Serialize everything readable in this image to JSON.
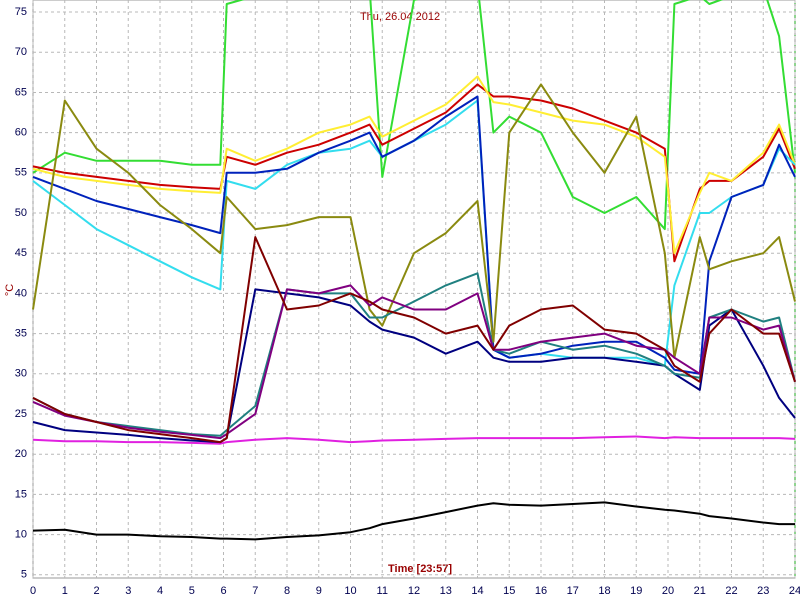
{
  "chart_data": {
    "type": "line",
    "title": "Thu, 26.04.2012",
    "x_label": "Time [23:57]",
    "y_label": "°C",
    "x": [
      0,
      1,
      2,
      3,
      4,
      5,
      5.9,
      6.1,
      7,
      8,
      9,
      10,
      10.6,
      11,
      12,
      13,
      14,
      14.5,
      15,
      16,
      17,
      18,
      19,
      19.9,
      20.2,
      21,
      21.3,
      22,
      23,
      23.5,
      24
    ],
    "xlim": [
      0,
      24
    ],
    "xticks": [
      0,
      1,
      2,
      3,
      4,
      5,
      6,
      7,
      8,
      9,
      10,
      11,
      12,
      13,
      14,
      15,
      16,
      17,
      18,
      19,
      20,
      21,
      22,
      23,
      24
    ],
    "ylim": [
      4.6,
      76.5
    ],
    "yticks": [
      5,
      10,
      15,
      20,
      25,
      30,
      35,
      40,
      45,
      50,
      55,
      60,
      65,
      70,
      75
    ],
    "grid": true,
    "series": [
      {
        "color": "#000000",
        "values": [
          10.5,
          10.6,
          10,
          10,
          9.8,
          9.7,
          9.5,
          9.5,
          9.4,
          9.7,
          9.9,
          10.3,
          10.8,
          11.3,
          12,
          12.8,
          13.6,
          13.9,
          13.7,
          13.6,
          13.8,
          14,
          13.5,
          13.1,
          13,
          12.6,
          12.3,
          12,
          11.5,
          11.3,
          11.3
        ]
      },
      {
        "color": "#e020e0",
        "values": [
          21.8,
          21.6,
          21.6,
          21.5,
          21.5,
          21.4,
          21.3,
          21.5,
          21.8,
          22,
          21.8,
          21.5,
          21.6,
          21.7,
          21.8,
          21.9,
          22,
          22,
          22,
          22,
          22,
          22.1,
          22.2,
          22,
          22.1,
          22,
          22,
          22,
          22,
          22,
          21.9
        ]
      },
      {
        "color": "#33dd33",
        "values": [
          55,
          57.5,
          56.5,
          56.5,
          56.5,
          56,
          56,
          76,
          77,
          77,
          77,
          78,
          78,
          54.5,
          76.5,
          77.5,
          78.5,
          60,
          62,
          60,
          52,
          50,
          52,
          48,
          76,
          77,
          76,
          77,
          78,
          72,
          55
        ]
      },
      {
        "color": "#cc0000",
        "values": [
          55.8,
          55,
          54.5,
          54,
          53.5,
          53.2,
          53,
          57,
          56,
          57.5,
          58.5,
          60,
          61,
          58.5,
          60.5,
          62.5,
          66,
          64.5,
          64.5,
          64,
          63,
          61.5,
          60,
          58,
          44,
          53,
          54,
          54,
          57,
          60.5,
          55.5
        ]
      },
      {
        "color": "#ffee33",
        "values": [
          55.5,
          54.5,
          54,
          53.5,
          53,
          52.7,
          52.5,
          58,
          56.5,
          58,
          60,
          61,
          62,
          59.5,
          61.5,
          63.5,
          67,
          63.8,
          63.5,
          62.5,
          61.5,
          61,
          59.5,
          57,
          45,
          52.5,
          55,
          54,
          57.5,
          61,
          56
        ]
      },
      {
        "color": "#33ddee",
        "values": [
          54,
          51,
          48,
          46,
          44,
          42,
          40.5,
          54,
          53,
          56,
          57.5,
          58,
          59,
          57,
          59,
          61,
          64,
          33,
          32,
          32.5,
          32,
          32,
          32,
          31,
          41,
          50,
          50,
          52,
          53.5,
          58,
          56
        ]
      },
      {
        "color": "#0022bb",
        "values": [
          54.5,
          53,
          51.5,
          50.5,
          49.5,
          48.5,
          47.5,
          55,
          55,
          55.5,
          57.5,
          59,
          60,
          57,
          59,
          62,
          64.5,
          33,
          32,
          32.5,
          33.5,
          34,
          34,
          32,
          30.5,
          30,
          44,
          52,
          53.5,
          58.5,
          54.5
        ]
      },
      {
        "color": "#8a8a10",
        "values": [
          38,
          64,
          58,
          55,
          51,
          48,
          45,
          52,
          48,
          48.5,
          49.5,
          49.5,
          38,
          36,
          45,
          47.5,
          51.5,
          34,
          60,
          66,
          60,
          55,
          62,
          45,
          32,
          47,
          43,
          44,
          45,
          47,
          39
        ]
      },
      {
        "color": "#000080",
        "values": [
          24,
          23,
          22.7,
          22.4,
          22,
          21.7,
          21.5,
          22,
          40.5,
          40,
          39.5,
          38.5,
          36.5,
          35.5,
          34.5,
          32.5,
          34,
          32,
          31.5,
          31.5,
          32,
          32,
          31.5,
          31,
          30,
          28,
          36,
          38,
          31,
          27,
          24.5
        ]
      },
      {
        "color": "#208080",
        "values": [
          27,
          25,
          24,
          23.5,
          23,
          22.5,
          22.3,
          23,
          26,
          40.5,
          40,
          40,
          37,
          37,
          39,
          41,
          42.5,
          33,
          32.5,
          34,
          33,
          33.5,
          32.5,
          31,
          30,
          29.5,
          37,
          38,
          36.5,
          37,
          29
        ]
      },
      {
        "color": "#800080",
        "values": [
          26.5,
          24.8,
          24,
          23.3,
          22.8,
          22.4,
          22,
          22.5,
          25,
          40.5,
          40,
          41,
          38.5,
          39.5,
          38,
          38,
          40,
          33,
          33,
          34,
          34.5,
          35,
          33.5,
          33,
          32,
          30,
          37,
          37,
          35.5,
          36,
          29
        ]
      },
      {
        "color": "#800000",
        "values": [
          27,
          25,
          24,
          23,
          22.5,
          22,
          21.5,
          22,
          47,
          38,
          38.5,
          40,
          39,
          38,
          37,
          35,
          36,
          33,
          36,
          38,
          38.5,
          35.5,
          35,
          33,
          31,
          29,
          35,
          38,
          35,
          35,
          29
        ]
      }
    ]
  }
}
